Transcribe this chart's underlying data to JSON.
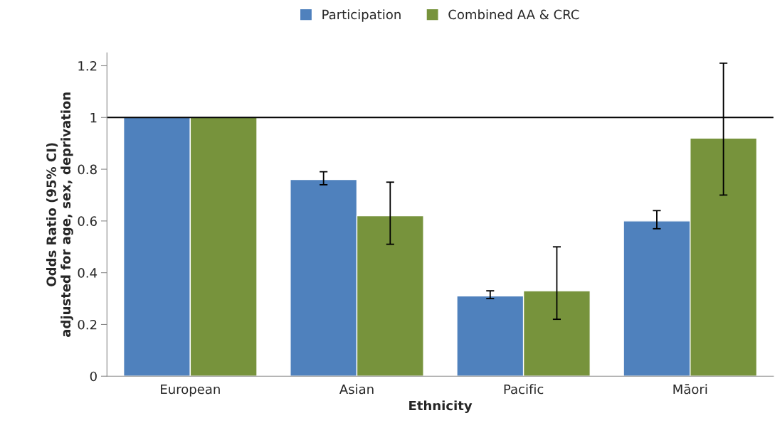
{
  "chart_data": {
    "type": "bar",
    "xlabel": "Ethnicity",
    "ylabel": "Odds Ratio (95% CI)\nadjusted for age, sex, deprivation",
    "categories": [
      "European",
      "Asian",
      "Pacific",
      "Māori"
    ],
    "series": [
      {
        "name": "Participation",
        "color": "#4f81bd",
        "values": [
          1.0,
          0.76,
          0.31,
          0.6
        ],
        "errors": [
          null,
          [
            0.74,
            0.79
          ],
          [
            0.3,
            0.33
          ],
          [
            0.57,
            0.64
          ]
        ]
      },
      {
        "name": "Combined AA & CRC",
        "color": "#77933c",
        "values": [
          1.0,
          0.62,
          0.33,
          0.92
        ],
        "errors": [
          null,
          [
            0.51,
            0.75
          ],
          [
            0.22,
            0.5
          ],
          [
            0.7,
            1.21
          ]
        ]
      }
    ],
    "ylim": [
      0,
      1.25
    ],
    "yticks": [
      0,
      0.2,
      0.4,
      0.6,
      0.8,
      1,
      1.2
    ],
    "ref_lines": [
      {
        "axis": "y",
        "value": 1,
        "color": "#000000"
      }
    ],
    "grid": false,
    "legend": "top"
  }
}
